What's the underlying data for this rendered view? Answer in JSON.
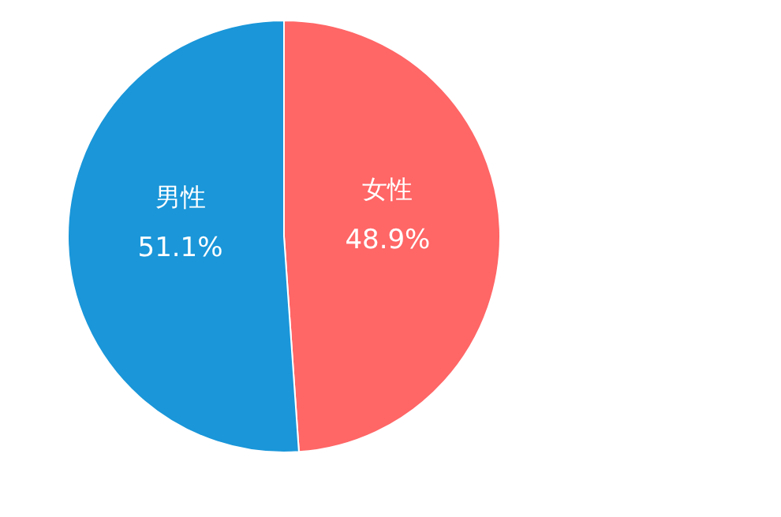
{
  "chart_data": {
    "type": "pie",
    "categories": [
      "女性",
      "男性"
    ],
    "values": [
      48.9,
      51.1
    ],
    "colors": [
      "#ff6666",
      "#1a96d9"
    ],
    "value_labels": [
      "48.9%",
      "51.1%"
    ]
  }
}
